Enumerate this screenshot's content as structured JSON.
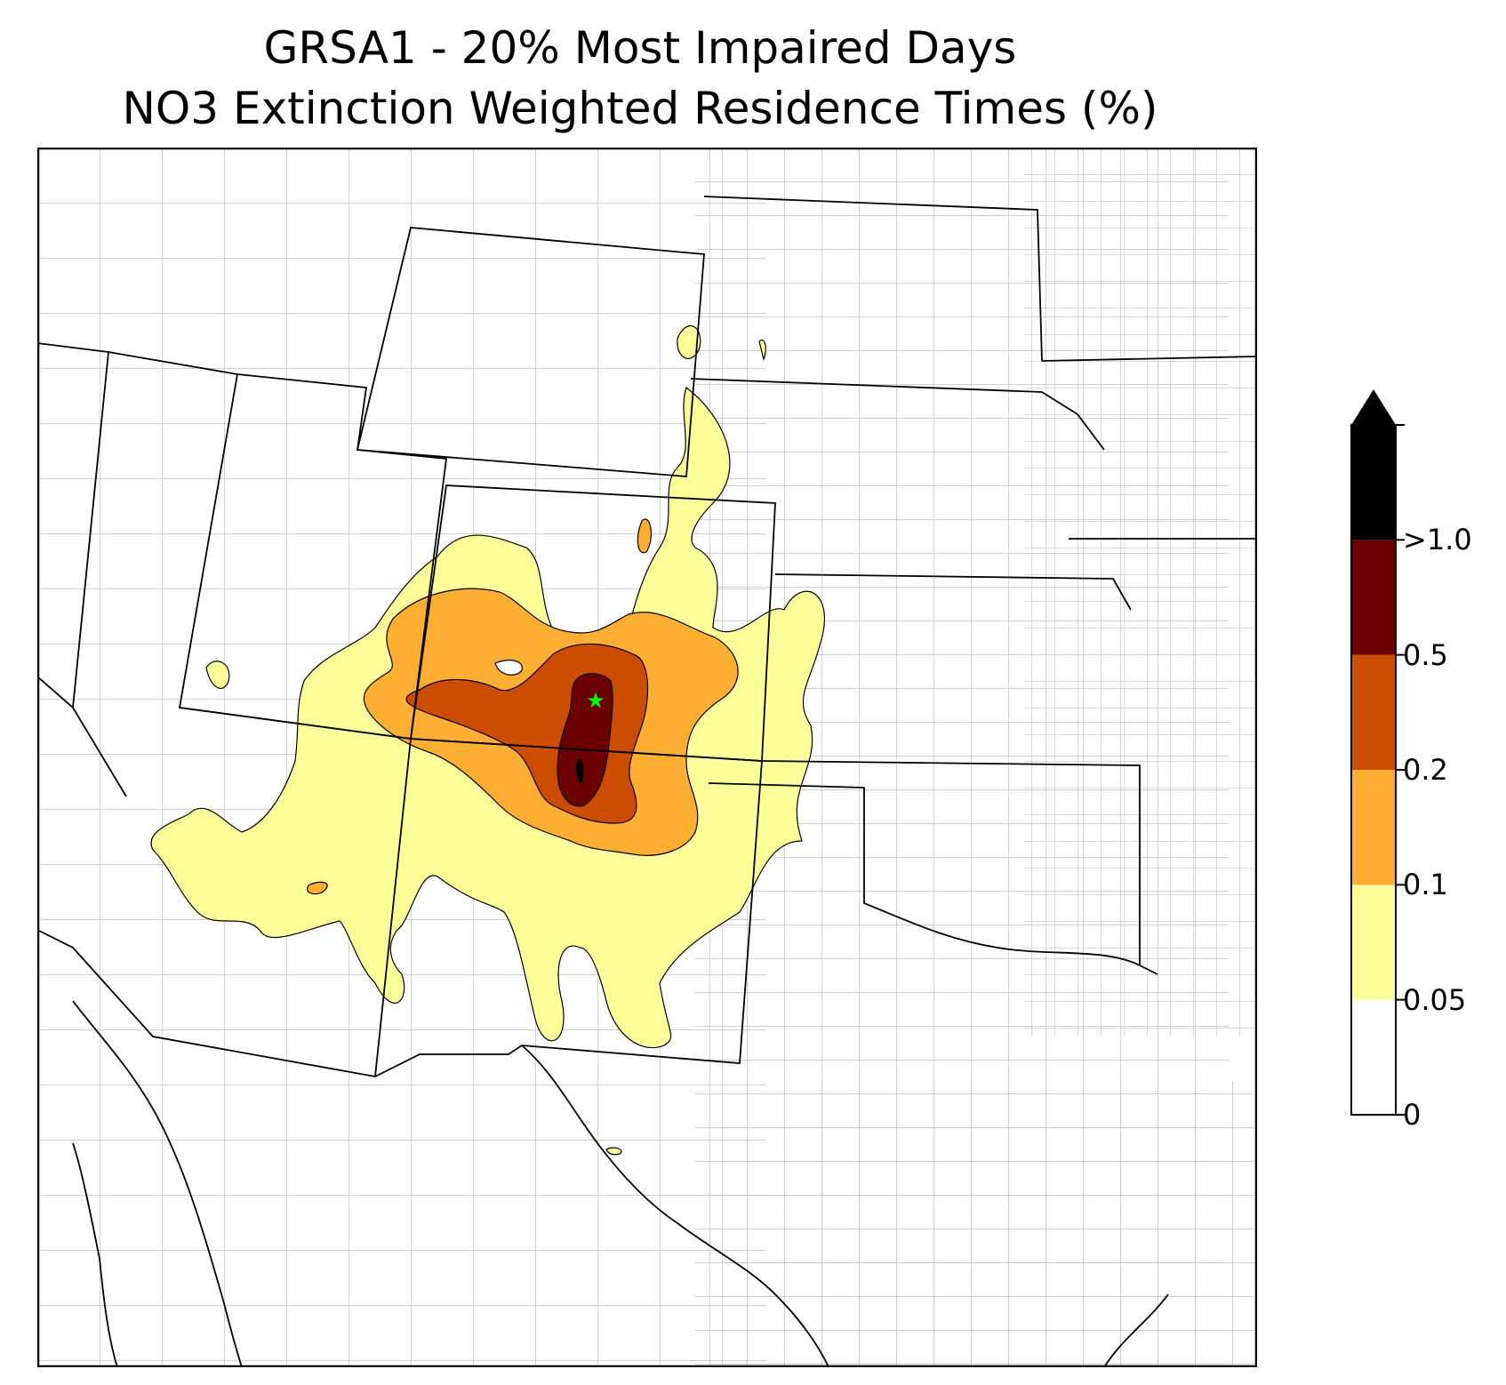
{
  "title": {
    "line1": "GRSA1 - 20% Most Impaired Days",
    "line2": "NO3 Extinction Weighted Residence Times (%)"
  },
  "site_marker": {
    "icon": "star-icon",
    "color": "#00ff00"
  },
  "colorbar": {
    "bins": [
      {
        "color": "#ffffff"
      },
      {
        "color": "#ffff99"
      },
      {
        "color": "#fdae33"
      },
      {
        "color": "#cc4c02"
      },
      {
        "color": "#6b0000"
      },
      {
        "color": "#000000"
      }
    ],
    "ticks": [
      "0",
      "0.05",
      "0.1",
      "0.2",
      "0.5",
      ">1.0"
    ],
    "extend": "max"
  },
  "colors": {
    "state_lines": "#000000",
    "county_lines": "#a0a0a0"
  }
}
